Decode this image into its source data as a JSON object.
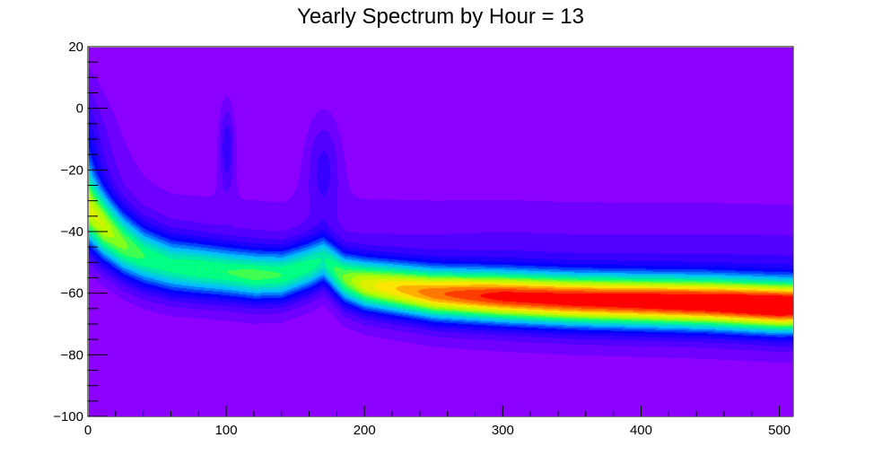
{
  "chart_data": {
    "type": "heatmap",
    "title": "Yearly Spectrum by Hour = 13",
    "xlabel": "",
    "ylabel": "",
    "xlim": [
      0,
      510
    ],
    "ylim": [
      -100,
      20
    ],
    "x_ticks": [
      0,
      100,
      200,
      300,
      400,
      500
    ],
    "y_ticks": [
      -100,
      -80,
      -60,
      -40,
      -20,
      0,
      20
    ],
    "x_tick_labels": [
      "0",
      "100",
      "200",
      "300",
      "400",
      "500"
    ],
    "y_tick_labels": [
      "−100",
      "−80",
      "−60",
      "−40",
      "−20",
      "0",
      "20"
    ],
    "colormap": "rainbow",
    "background_color": "#8c00ff",
    "density_ridge": {
      "x": [
        0,
        10,
        25,
        40,
        60,
        80,
        100,
        120,
        140,
        160,
        170,
        185,
        200,
        250,
        300,
        350,
        400,
        450,
        500,
        510
      ],
      "center_y": [
        -33,
        -38,
        -44,
        -48,
        -51,
        -52,
        -53,
        -54,
        -54,
        -51,
        -49,
        -55,
        -57,
        -60,
        -61,
        -62,
        -62.5,
        -63,
        -64,
        -64
      ],
      "peak_intensity": [
        0.55,
        0.6,
        0.55,
        0.5,
        0.48,
        0.5,
        0.5,
        0.52,
        0.5,
        0.48,
        0.45,
        0.55,
        0.65,
        0.78,
        0.86,
        0.88,
        0.9,
        0.93,
        0.97,
        0.95
      ]
    },
    "secondary_features": [
      {
        "x": 100,
        "y": -7,
        "note": "spike"
      },
      {
        "x": 170,
        "y": -12,
        "note": "bump"
      }
    ],
    "grid": false,
    "legend": "none"
  }
}
